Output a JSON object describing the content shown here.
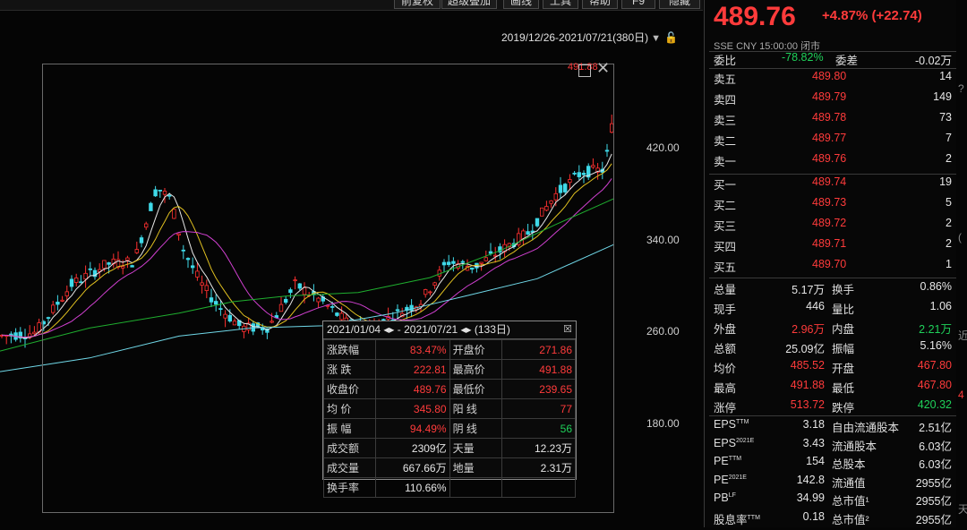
{
  "toolbar": {
    "buttons": [
      "前复权",
      "超级叠加",
      "画线",
      "工具",
      "帮助",
      "F9",
      "隐藏"
    ]
  },
  "chart": {
    "range_label": "2019/12/26-2021/07/21(380日)",
    "max_label": "491.88",
    "y_axis": [
      "420.00",
      "340.00",
      "260.00",
      "180.00"
    ],
    "colors": {
      "up": "#ff3030",
      "down": "#3fd9e8",
      "ma5": "#e8e8e8",
      "ma10": "#e0c020",
      "ma20": "#d040d0",
      "ma60": "#1fae2f",
      "ma120": "#70d8e8"
    }
  },
  "stats": {
    "header": "2021/01/04 ◂▸ - 2021/07/21 ◂▸  (133日)",
    "close_icon": "☒",
    "rows": [
      {
        "l1": "涨跌幅",
        "v1": "83.47%",
        "l2": "开盘价",
        "v2": "271.86"
      },
      {
        "l1": "涨  跌",
        "v1": "222.81",
        "l2": "最高价",
        "v2": "491.88"
      },
      {
        "l1": "收盘价",
        "v1": "489.76",
        "l2": "最低价",
        "v2": "239.65"
      },
      {
        "l1": "均  价",
        "v1": "345.80",
        "l2": "阳  线",
        "v2": "77"
      },
      {
        "l1": "振  幅",
        "v1": "94.49%",
        "l2": "阴  线",
        "v2": "56"
      },
      {
        "l1": "成交额",
        "v1": "2309亿",
        "l2": "天量",
        "v2": "12.23万"
      },
      {
        "l1": "成交量",
        "v1": "667.66万",
        "l2": "地量",
        "v2": "2.31万"
      },
      {
        "l1": "换手率",
        "v1": "110.66%",
        "l2": "",
        "v2": ""
      }
    ]
  },
  "quote": {
    "price": "489.76",
    "change": "+4.87% (+22.74)",
    "sub": "SSE  CNY  15:00:00  闭市",
    "weibi_label": "委比",
    "weibi": "-78.82%",
    "weicha_label": "委差",
    "weicha": "-0.02万",
    "asks": [
      {
        "label": "卖五",
        "price": "489.80",
        "vol": "14"
      },
      {
        "label": "卖四",
        "price": "489.79",
        "vol": "149"
      },
      {
        "label": "卖三",
        "price": "489.78",
        "vol": "73"
      },
      {
        "label": "卖二",
        "price": "489.77",
        "vol": "7"
      },
      {
        "label": "卖一",
        "price": "489.76",
        "vol": "2"
      }
    ],
    "bids": [
      {
        "label": "买一",
        "price": "489.74",
        "vol": "19"
      },
      {
        "label": "买二",
        "price": "489.73",
        "vol": "5"
      },
      {
        "label": "买三",
        "price": "489.72",
        "vol": "2"
      },
      {
        "label": "买四",
        "price": "489.71",
        "vol": "2"
      },
      {
        "label": "买五",
        "price": "489.70",
        "vol": "1"
      }
    ],
    "summary": [
      {
        "l1": "总量",
        "v1": "5.17万",
        "c1": "white",
        "l2": "换手",
        "v2": "0.86%",
        "c2": "white"
      },
      {
        "l1": "现手",
        "v1": "446",
        "c1": "white",
        "l2": "量比",
        "v2": "1.06",
        "c2": "white"
      },
      {
        "l1": "外盘",
        "v1": "2.96万",
        "c1": "red",
        "l2": "内盘",
        "v2": "2.21万",
        "c2": "green"
      },
      {
        "l1": "总额",
        "v1": "25.09亿",
        "c1": "white",
        "l2": "振幅",
        "v2": "5.16%",
        "c2": "white"
      },
      {
        "l1": "均价",
        "v1": "485.52",
        "c1": "red",
        "l2": "开盘",
        "v2": "467.80",
        "c2": "red"
      },
      {
        "l1": "最高",
        "v1": "491.88",
        "c1": "red",
        "l2": "最低",
        "v2": "467.80",
        "c2": "red"
      },
      {
        "l1": "涨停",
        "v1": "513.72",
        "c1": "red",
        "l2": "跌停",
        "v2": "420.32",
        "c2": "green"
      }
    ],
    "fundamentals": [
      {
        "l1": "EPS",
        "s1": "TTM",
        "v1": "3.18",
        "l2": "自由流通股本",
        "v2": "2.51亿"
      },
      {
        "l1": "EPS",
        "s1": "2021E",
        "v1": "3.43",
        "l2": "流通股本",
        "v2": "6.03亿"
      },
      {
        "l1": "PE",
        "s1": "TTM",
        "v1": "154",
        "l2": "总股本",
        "v2": "6.03亿"
      },
      {
        "l1": "PE",
        "s1": "2021E",
        "v1": "142.8",
        "l2": "流通值",
        "v2": "2955亿"
      },
      {
        "l1": "PB",
        "s1": "LF",
        "v1": "34.99",
        "l2": "总市值¹",
        "v2": "2955亿"
      },
      {
        "l1": "股息率",
        "s1": "TTM",
        "v1": "0.18",
        "l2": "总市值²",
        "v2": "2955亿"
      }
    ]
  },
  "edge": [
    "?",
    "(",
    "近",
    "4",
    "天"
  ]
}
